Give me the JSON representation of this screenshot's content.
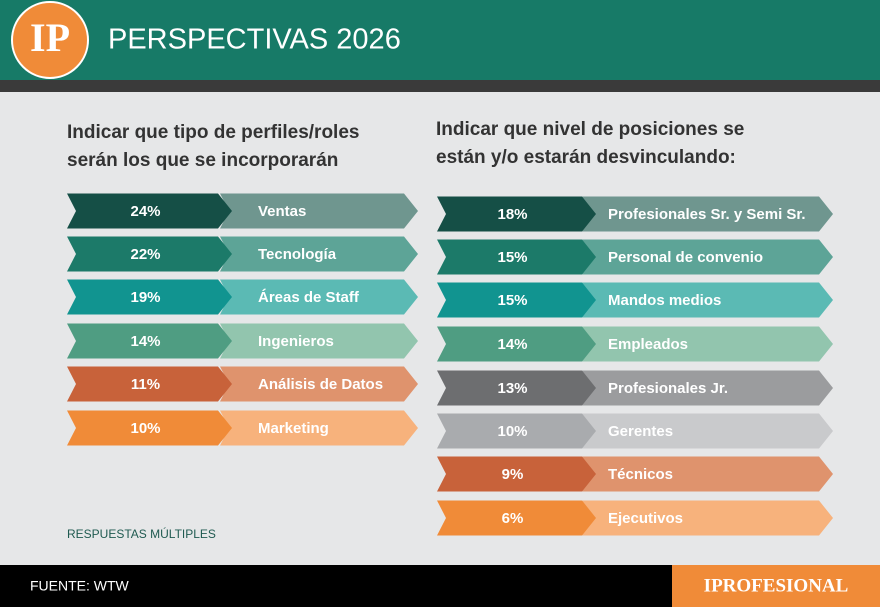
{
  "header": {
    "logo": "IP",
    "title": "PERSPECTIVAS 2026"
  },
  "panels": [
    {
      "title_lines": [
        "Indicar que tipo de perfiles/roles",
        "serán los que se incorporarán"
      ],
      "items": [
        {
          "percent": "24%",
          "label": "Ventas",
          "color": "#154f46",
          "label_color": "#6f968f"
        },
        {
          "percent": "22%",
          "label": "Tecnología",
          "color": "#1c7a69",
          "label_color": "#5da497"
        },
        {
          "percent": "19%",
          "label": "Áreas de Staff",
          "color": "#119490",
          "label_color": "#5bbab4"
        },
        {
          "percent": "14%",
          "label": "Ingenieros",
          "color": "#4f9d82",
          "label_color": "#92c5ae"
        },
        {
          "percent": "11%",
          "label": "Análisis de Datos",
          "color": "#c8623a",
          "label_color": "#df936d"
        },
        {
          "percent": "10%",
          "label": "Marketing",
          "color": "#f08b38",
          "label_color": "#f7b27c"
        }
      ],
      "note": "RESPUESTAS MÚLTIPLES"
    },
    {
      "title_lines": [
        "Indicar que nivel de posiciones se",
        "están y/o estarán desvinculando:"
      ],
      "items": [
        {
          "percent": "18%",
          "label": "Profesionales Sr. y Semi Sr.",
          "color": "#154f46",
          "label_color": "#6f968f"
        },
        {
          "percent": "15%",
          "label": "Personal de convenio",
          "color": "#1c7a69",
          "label_color": "#5da497"
        },
        {
          "percent": "15%",
          "label": "Mandos medios",
          "color": "#119490",
          "label_color": "#5bbab4"
        },
        {
          "percent": "14%",
          "label": "Empleados",
          "color": "#4f9d82",
          "label_color": "#92c5ae"
        },
        {
          "percent": "13%",
          "label": "Profesionales Jr.",
          "color": "#6d6e70",
          "label_color": "#9b9c9e"
        },
        {
          "percent": "10%",
          "label": "Gerentes",
          "color": "#a9abae",
          "label_color": "#c9cacc"
        },
        {
          "percent": "9%",
          "label": "Técnicos",
          "color": "#c8623a",
          "label_color": "#df936d"
        },
        {
          "percent": "6%",
          "label": "Ejecutivos",
          "color": "#f08b38",
          "label_color": "#f7b27c"
        }
      ]
    }
  ],
  "footer": {
    "source": "FUENTE: WTW",
    "brand": "IPROFESIONAL"
  }
}
